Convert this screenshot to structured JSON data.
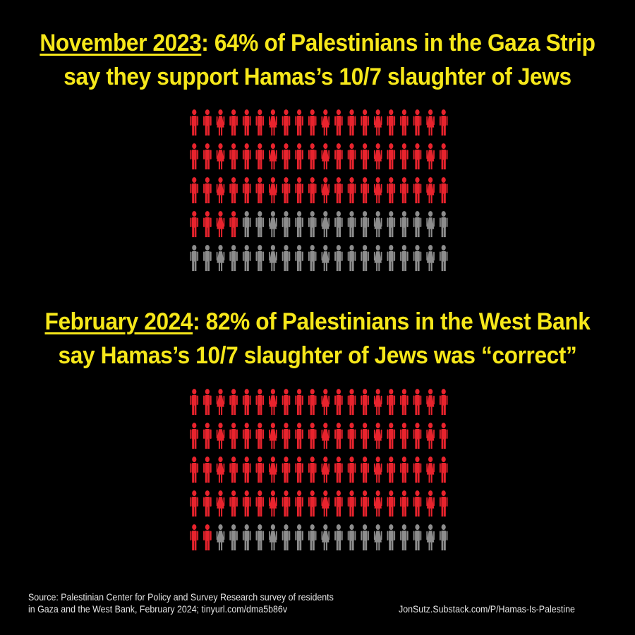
{
  "colors": {
    "background": "#000000",
    "headline": "#f6e71a",
    "support": "#e8232d",
    "other": "#8d8d8d",
    "footer": "#e6e6e6"
  },
  "headlines": [
    {
      "date": "November 2023",
      "rest_line1": ": 64% of Palestinians in the Gaza Strip",
      "line2": "say they support Hamas’s 10/7 slaughter of Jews"
    },
    {
      "date": "February 2024",
      "rest_line1": ": 82% of Palestinians in the West Bank",
      "line2": "say Hamas’s 10/7 slaughter of Jews was “correct”"
    }
  ],
  "chart_data": [
    {
      "type": "pictogram",
      "total": 100,
      "rows": 5,
      "columns": 20,
      "highlighted": 64,
      "highlight_color": "#e8232d",
      "rest_color": "#8d8d8d"
    },
    {
      "type": "pictogram",
      "total": 100,
      "rows": 5,
      "columns": 20,
      "highlighted": 82,
      "highlight_color": "#e8232d",
      "rest_color": "#8d8d8d"
    }
  ],
  "footer": {
    "source_line1": "Source: Palestinian Center for Policy and Survey Research survey of residents",
    "source_line2": "in Gaza and the West Bank, February 2024; tinyurl.com/dma5b86v",
    "credit": "JonSutz.Substack.com/P/Hamas-Is-Palestine"
  }
}
